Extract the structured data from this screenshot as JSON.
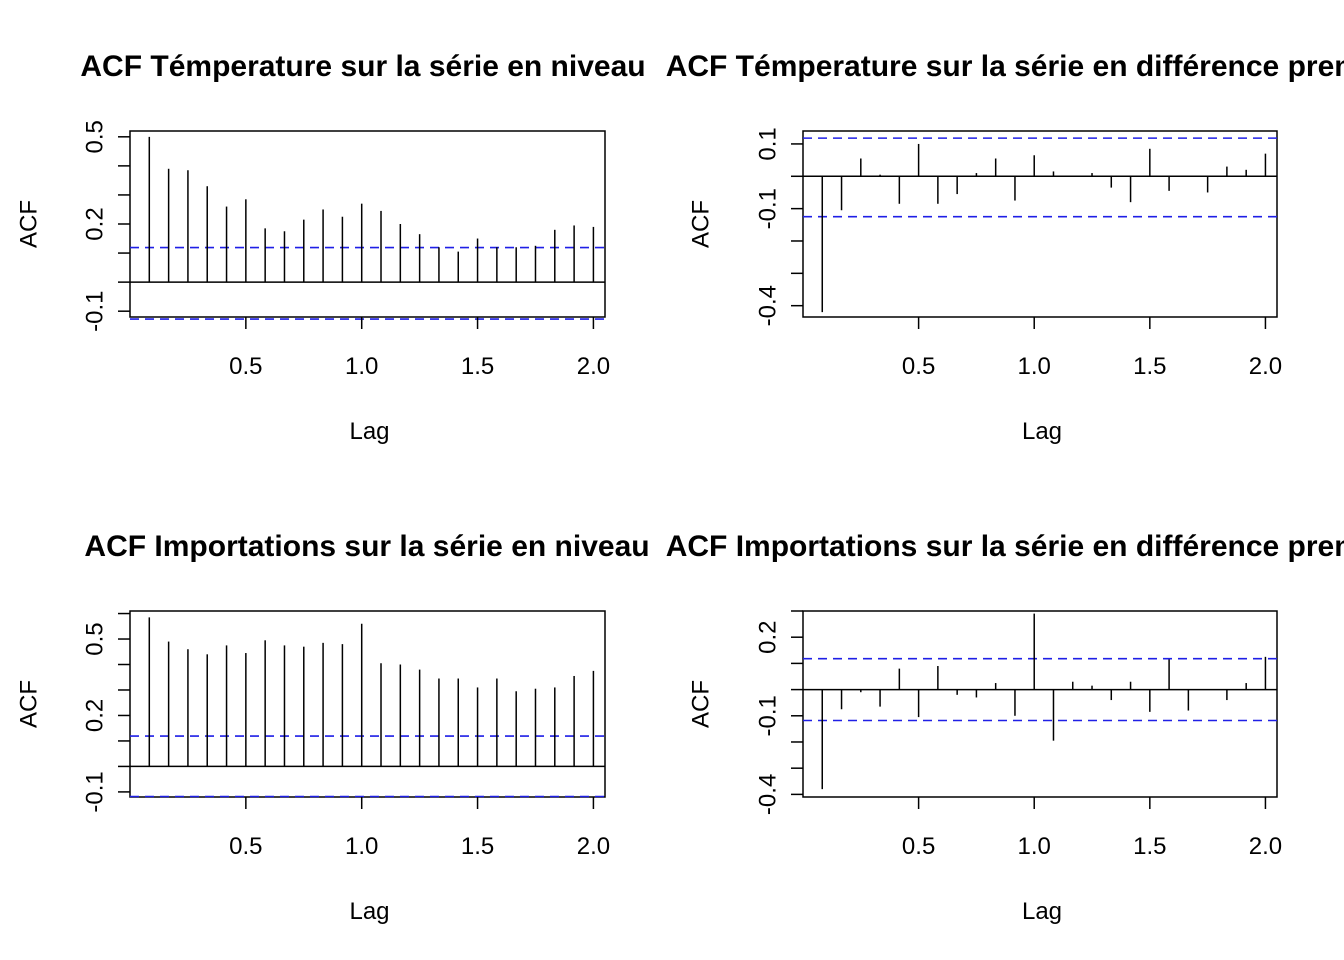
{
  "chart_data": [
    {
      "type": "bar",
      "title": "ACF Témperature sur la série en niveau",
      "xlabel": "Lag",
      "ylabel": "ACF",
      "xlim": [
        0,
        2.05
      ],
      "ylim": [
        -0.12,
        0.52
      ],
      "xticks": [
        "0.5",
        "1.0",
        "1.5",
        "2.0"
      ],
      "yticks_labeled": [
        "-0.1",
        "0.2",
        "0.5"
      ],
      "ci": [
        0.119,
        -0.127
      ],
      "x": [
        0.0833,
        0.1667,
        0.25,
        0.3333,
        0.4167,
        0.5,
        0.5833,
        0.6667,
        0.75,
        0.8333,
        0.9167,
        1.0,
        1.0833,
        1.1667,
        1.25,
        1.3333,
        1.4167,
        1.5,
        1.5833,
        1.6667,
        1.75,
        1.8333,
        1.9167,
        2.0
      ],
      "values": [
        0.5,
        0.39,
        0.385,
        0.33,
        0.26,
        0.285,
        0.185,
        0.175,
        0.215,
        0.25,
        0.225,
        0.27,
        0.245,
        0.2,
        0.165,
        0.12,
        0.105,
        0.15,
        0.12,
        0.12,
        0.125,
        0.18,
        0.195,
        0.19
      ],
      "grid": false,
      "legend": "none"
    },
    {
      "type": "bar",
      "title": "ACF Témperature sur la série en différence première",
      "xlabel": "Lag",
      "ylabel": "ACF",
      "xlim": [
        0,
        2.05
      ],
      "ylim": [
        -0.435,
        0.14
      ],
      "xticks": [
        "0.5",
        "1.0",
        "1.5",
        "2.0"
      ],
      "yticks_labeled": [
        "-0.4",
        "-0.1",
        "0.1"
      ],
      "ci": [
        0.118,
        -0.125
      ],
      "x": [
        0.0833,
        0.1667,
        0.25,
        0.3333,
        0.4167,
        0.5,
        0.5833,
        0.6667,
        0.75,
        0.8333,
        0.9167,
        1.0,
        1.0833,
        1.1667,
        1.25,
        1.3333,
        1.4167,
        1.5,
        1.5833,
        1.6667,
        1.75,
        1.8333,
        1.9167,
        2.0
      ],
      "values": [
        -0.42,
        -0.105,
        0.055,
        0.005,
        -0.085,
        0.1,
        -0.085,
        -0.055,
        0.01,
        0.055,
        -0.075,
        0.065,
        0.015,
        0.0,
        0.01,
        -0.035,
        -0.08,
        0.085,
        -0.045,
        0.0,
        -0.05,
        0.03,
        0.02,
        0.07
      ],
      "grid": false,
      "legend": "none"
    },
    {
      "type": "bar",
      "title": "ACF Importations sur la série en niveau",
      "xlabel": "Lag",
      "ylabel": "ACF",
      "xlim": [
        0,
        2.05
      ],
      "ylim": [
        -0.12,
        0.61
      ],
      "xticks": [
        "0.5",
        "1.0",
        "1.5",
        "2.0"
      ],
      "yticks_labeled": [
        "-0.1",
        "0.2",
        "0.5"
      ],
      "ci": [
        0.119,
        -0.118
      ],
      "x": [
        0.0833,
        0.1667,
        0.25,
        0.3333,
        0.4167,
        0.5,
        0.5833,
        0.6667,
        0.75,
        0.8333,
        0.9167,
        1.0,
        1.0833,
        1.1667,
        1.25,
        1.3333,
        1.4167,
        1.5,
        1.5833,
        1.6667,
        1.75,
        1.8333,
        1.9167,
        2.0
      ],
      "values": [
        0.585,
        0.49,
        0.46,
        0.44,
        0.475,
        0.445,
        0.495,
        0.475,
        0.47,
        0.485,
        0.48,
        0.56,
        0.405,
        0.4,
        0.38,
        0.345,
        0.345,
        0.31,
        0.345,
        0.295,
        0.305,
        0.31,
        0.355,
        0.375
      ],
      "grid": false,
      "legend": "none"
    },
    {
      "type": "bar",
      "title": "ACF Importations sur la série en différence première",
      "xlabel": "Lag",
      "ylabel": "ACF",
      "xlim": [
        0,
        2.05
      ],
      "ylim": [
        -0.41,
        0.3
      ],
      "xticks": [
        "0.5",
        "1.0",
        "1.5",
        "2.0"
      ],
      "yticks_labeled": [
        "-0.4",
        "-0.1",
        "0.2"
      ],
      "ci": [
        0.118,
        -0.118
      ],
      "x": [
        0.0833,
        0.1667,
        0.25,
        0.3333,
        0.4167,
        0.5,
        0.5833,
        0.6667,
        0.75,
        0.8333,
        0.9167,
        1.0,
        1.0833,
        1.1667,
        1.25,
        1.3333,
        1.4167,
        1.5,
        1.5833,
        1.6667,
        1.75,
        1.8333,
        1.9167,
        2.0
      ],
      "values": [
        -0.38,
        -0.075,
        -0.01,
        -0.065,
        0.08,
        -0.105,
        0.09,
        -0.02,
        -0.03,
        0.025,
        -0.1,
        0.29,
        -0.195,
        0.03,
        0.015,
        -0.04,
        0.03,
        -0.085,
        0.115,
        -0.08,
        0.0,
        -0.04,
        0.025,
        0.125
      ],
      "grid": false,
      "legend": "none"
    }
  ]
}
